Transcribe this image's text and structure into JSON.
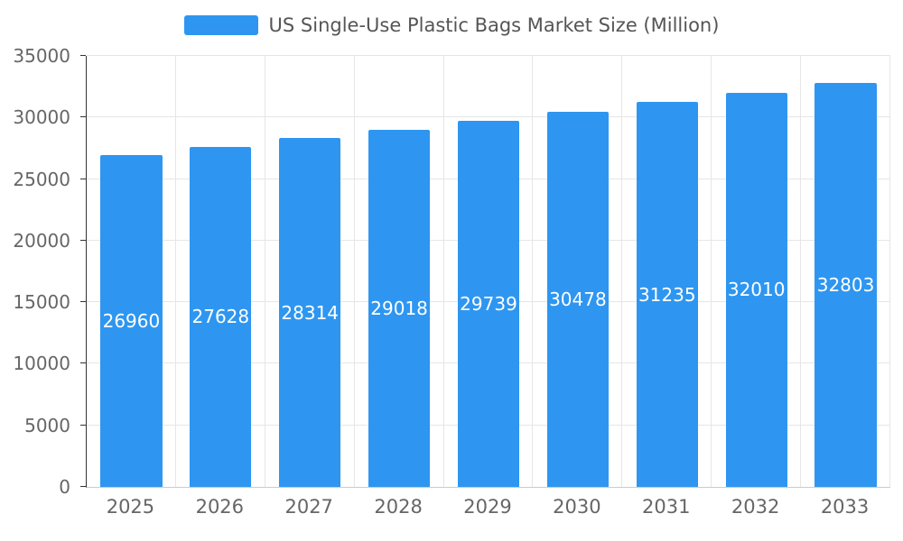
{
  "chart_data": {
    "type": "bar",
    "title": "US Single-Use Plastic Bags Market Size (Million)",
    "categories": [
      "2025",
      "2026",
      "2027",
      "2028",
      "2029",
      "2030",
      "2031",
      "2032",
      "2033"
    ],
    "values": [
      26960,
      27628,
      28314,
      29018,
      29739,
      30478,
      31235,
      32010,
      32803
    ],
    "xlabel": "",
    "ylabel": "",
    "ylim": [
      0,
      35000
    ],
    "ytick_interval": 5000,
    "grid": true,
    "legend_position": "top-center",
    "colors": {
      "bar": "#2e96f0",
      "value_label_text": "#ffffff",
      "axis_text": "#666666",
      "title_text": "#555555",
      "gridline": "#e6e6e6",
      "y_axis_line": "#333333",
      "x_axis_line": "#cccccc"
    }
  }
}
